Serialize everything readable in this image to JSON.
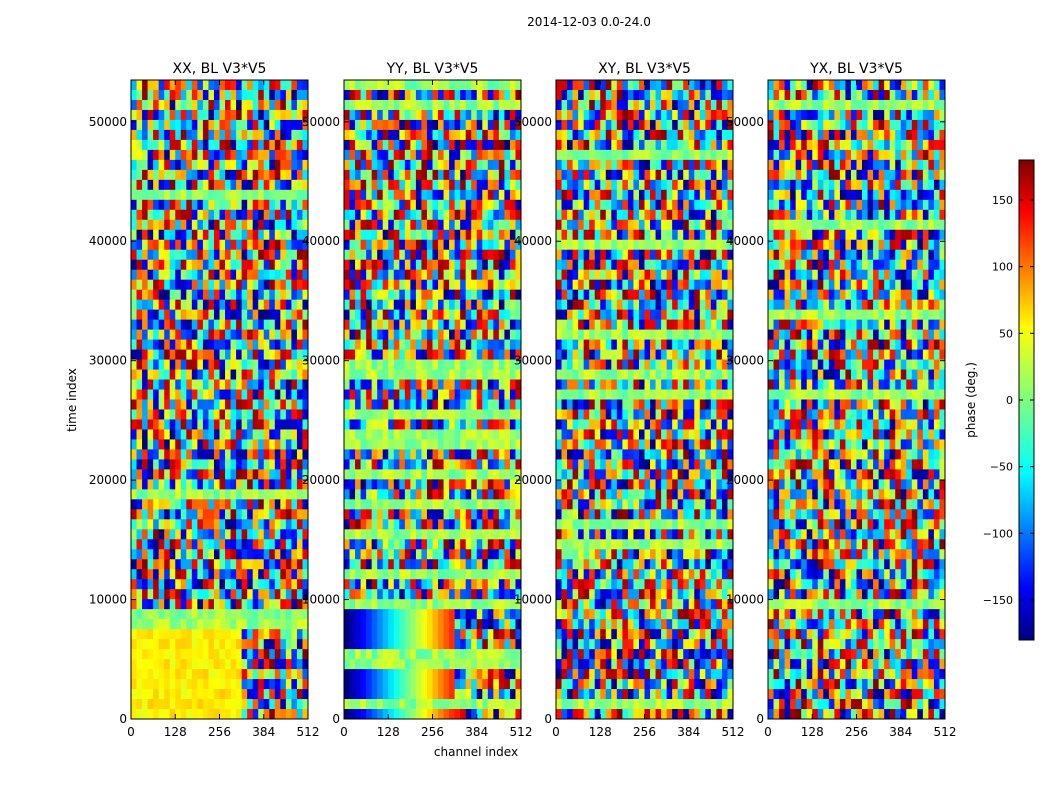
{
  "figure": {
    "suptitle": "2014-12-03 0.0-24.0"
  },
  "chart_data": {
    "type": "heatmap",
    "colormap": "jet",
    "xlabel": "channel index",
    "ylabel": "time index",
    "xlim": [
      0,
      512
    ],
    "ylim": [
      0,
      53500
    ],
    "x_ticks": [
      0,
      128,
      256,
      384,
      512
    ],
    "y_ticks": [
      0,
      10000,
      20000,
      30000,
      40000,
      50000
    ],
    "panels": [
      {
        "title": "XX, BL V3*V5"
      },
      {
        "title": "YY, BL V3*V5"
      },
      {
        "title": "XY, BL V3*V5"
      },
      {
        "title": "YX, BL V3*V5"
      }
    ],
    "colorbar": {
      "label": "phase (deg.)",
      "vmin": -180,
      "vmax": 180,
      "ticks": [
        -150,
        -100,
        -50,
        0,
        50,
        100,
        150
      ]
    }
  }
}
